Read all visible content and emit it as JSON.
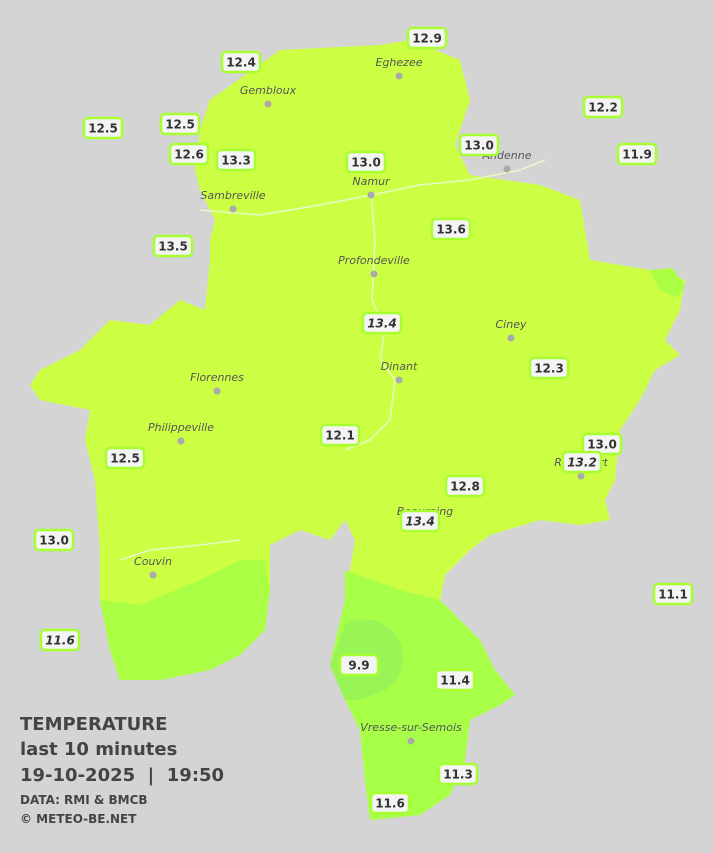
{
  "legend": {
    "title": "TEMPERATURE",
    "subtitle": "last 10 minutes",
    "datetime": "19-10-2025  |  19:50",
    "source": "DATA: RMI & BMCB",
    "copyright": "© METEO-BE.NET"
  },
  "cities": [
    "Eghezee",
    "Gembloux",
    "Andenne",
    "Namur",
    "Sambreville",
    "Profondeville",
    "Ciney",
    "Dinant",
    "Florennes",
    "Philippeville",
    "Rochefort",
    "Beauraing",
    "Couvin",
    "Vresse-sur-Semois"
  ],
  "stations": [
    {
      "value": "12.9",
      "italic": false
    },
    {
      "value": "12.4",
      "italic": false
    },
    {
      "value": "12.2",
      "italic": false
    },
    {
      "value": "12.5",
      "italic": false
    },
    {
      "value": "12.5",
      "italic": false
    },
    {
      "value": "12.6",
      "italic": false
    },
    {
      "value": "13.3",
      "italic": false
    },
    {
      "value": "13.0",
      "italic": false
    },
    {
      "value": "13.0",
      "italic": false
    },
    {
      "value": "11.9",
      "italic": false
    },
    {
      "value": "13.5",
      "italic": false
    },
    {
      "value": "13.6",
      "italic": false
    },
    {
      "value": "13.4",
      "italic": true
    },
    {
      "value": "12.3",
      "italic": false
    },
    {
      "value": "12.1",
      "italic": false
    },
    {
      "value": "13.0",
      "italic": false
    },
    {
      "value": "13.2",
      "italic": true
    },
    {
      "value": "12.5",
      "italic": false
    },
    {
      "value": "12.8",
      "italic": false
    },
    {
      "value": "13.4",
      "italic": true
    },
    {
      "value": "13.0",
      "italic": false
    },
    {
      "value": "11.1",
      "italic": false
    },
    {
      "value": "11.6",
      "italic": true
    },
    {
      "value": "9.9",
      "italic": false
    },
    {
      "value": "11.4",
      "italic": false
    },
    {
      "value": "11.3",
      "italic": false
    },
    {
      "value": "11.6",
      "italic": false
    }
  ]
}
